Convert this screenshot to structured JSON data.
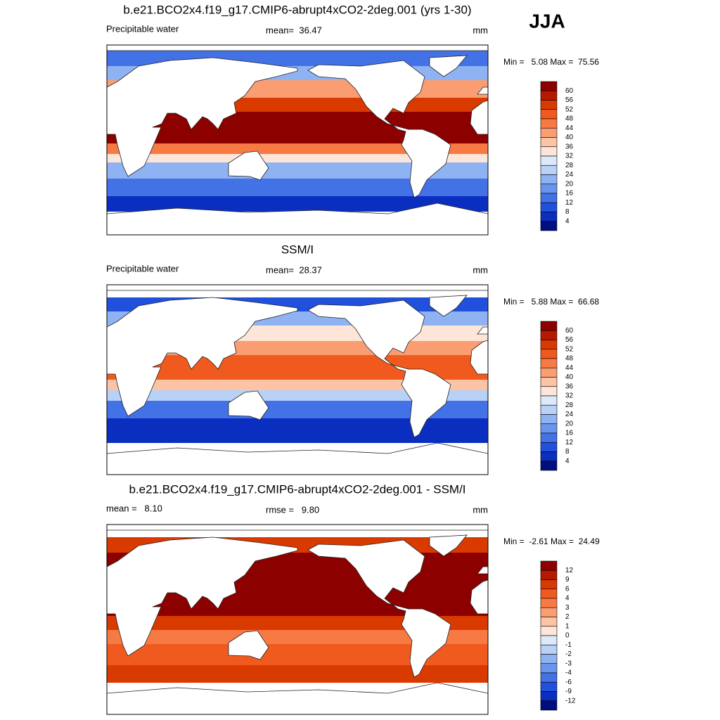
{
  "season": "JJA",
  "colorbar_colors": [
    "#8c0000",
    "#b51a00",
    "#d93a00",
    "#f05a1e",
    "#f77a45",
    "#fa9e72",
    "#fcc4a4",
    "#fde6d8",
    "#dbe9fb",
    "#b7d1f7",
    "#8fb3f2",
    "#6a95ec",
    "#4272e6",
    "#2050dc",
    "#0a2fc0",
    "#000f80"
  ],
  "panels": [
    {
      "title": "b.e21.BCO2x4.f19_g17.CMIP6-abrupt4xCO2-2deg.001 (yrs 1-30)",
      "left": "Precipitable water",
      "center": "mean=  36.47",
      "right": "mm",
      "minmax": "Min =   5.08 Max =  75.56",
      "levels": [
        60,
        56,
        52,
        48,
        44,
        40,
        36,
        32,
        28,
        24,
        20,
        16,
        12,
        8,
        4
      ]
    },
    {
      "title": "SSM/I",
      "left": "Precipitable water",
      "center": "mean=  28.37",
      "right": "mm",
      "minmax": "Min =   5.88 Max =  66.68",
      "levels": [
        60,
        56,
        52,
        48,
        44,
        40,
        36,
        32,
        28,
        24,
        20,
        16,
        12,
        8,
        4
      ]
    },
    {
      "title": "b.e21.BCO2x4.f19_g17.CMIP6-abrupt4xCO2-2deg.001 - SSM/I",
      "left": "mean =   8.10",
      "center": "rmse =   9.80",
      "right": "mm",
      "minmax": "Min =  -2.61 Max =  24.49",
      "levels": [
        12,
        9,
        6,
        4,
        3,
        2,
        1,
        0,
        -1,
        -2,
        -3,
        -4,
        -6,
        -9,
        -12
      ]
    }
  ]
}
